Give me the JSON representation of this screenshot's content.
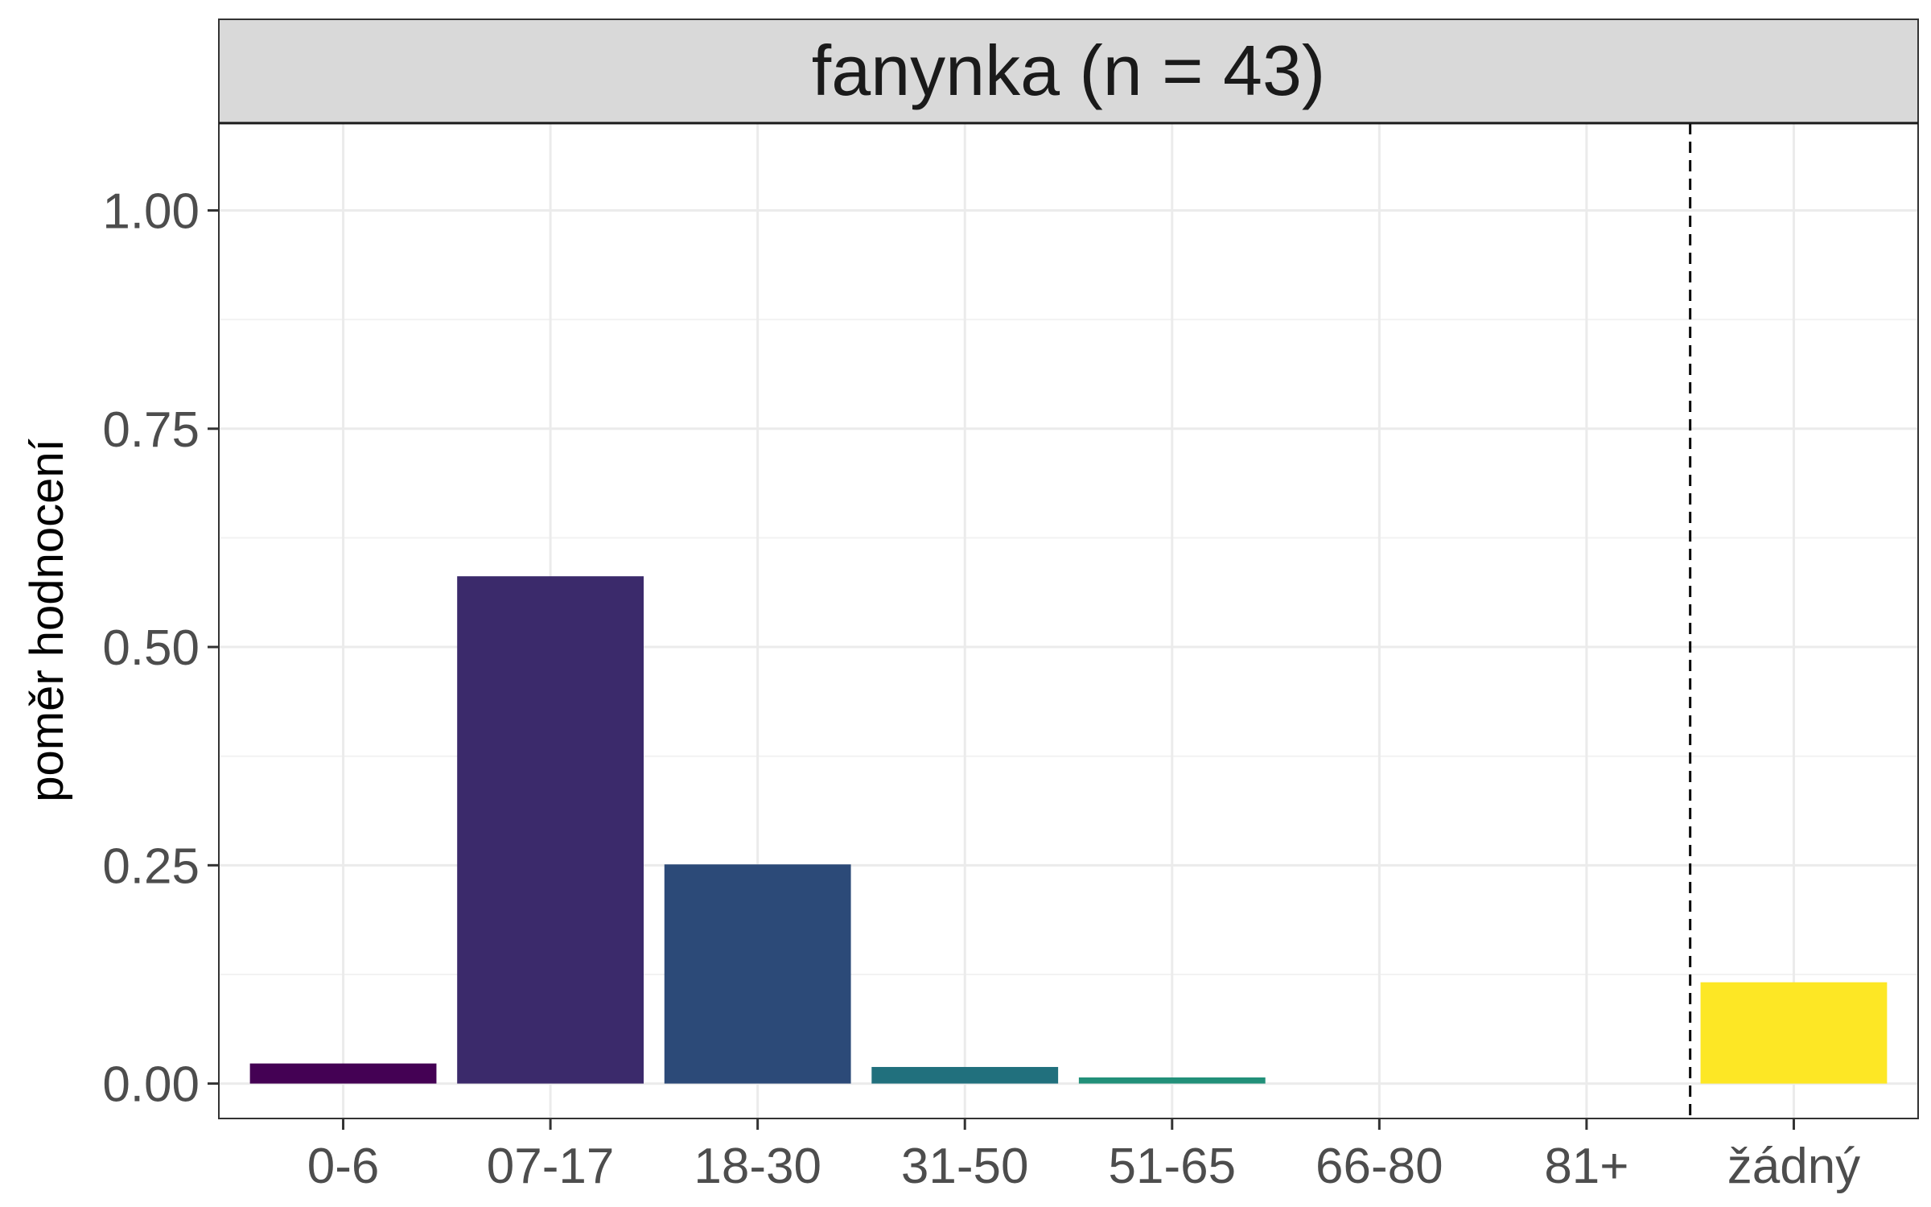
{
  "chart_data": {
    "type": "bar",
    "facet_title": "fanynka (n = 43)",
    "categories": [
      "0-6",
      "07-17",
      "18-30",
      "31-50",
      "51-65",
      "66-80",
      "81+",
      "žádný"
    ],
    "values": [
      0.023,
      0.581,
      0.251,
      0.019,
      0.007,
      0.0,
      0.0,
      0.116
    ],
    "colors": [
      "#440154",
      "#3b2a6b",
      "#2c4a78",
      "#21707d",
      "#229079",
      "#3fbc73",
      "#9bd93c",
      "#fde725"
    ],
    "xlabel": "",
    "ylabel": "poměr hodnocení",
    "ylim": [
      -0.04,
      1.1
    ],
    "yticks": [
      0.0,
      0.25,
      0.5,
      0.75,
      1.0
    ],
    "ytick_labels": [
      "0.00",
      "0.25",
      "0.50",
      "0.75",
      "1.00"
    ],
    "reference_line": {
      "style": "dashed",
      "between": [
        "81+",
        "žádný"
      ]
    },
    "grid": true,
    "legend": "none"
  }
}
